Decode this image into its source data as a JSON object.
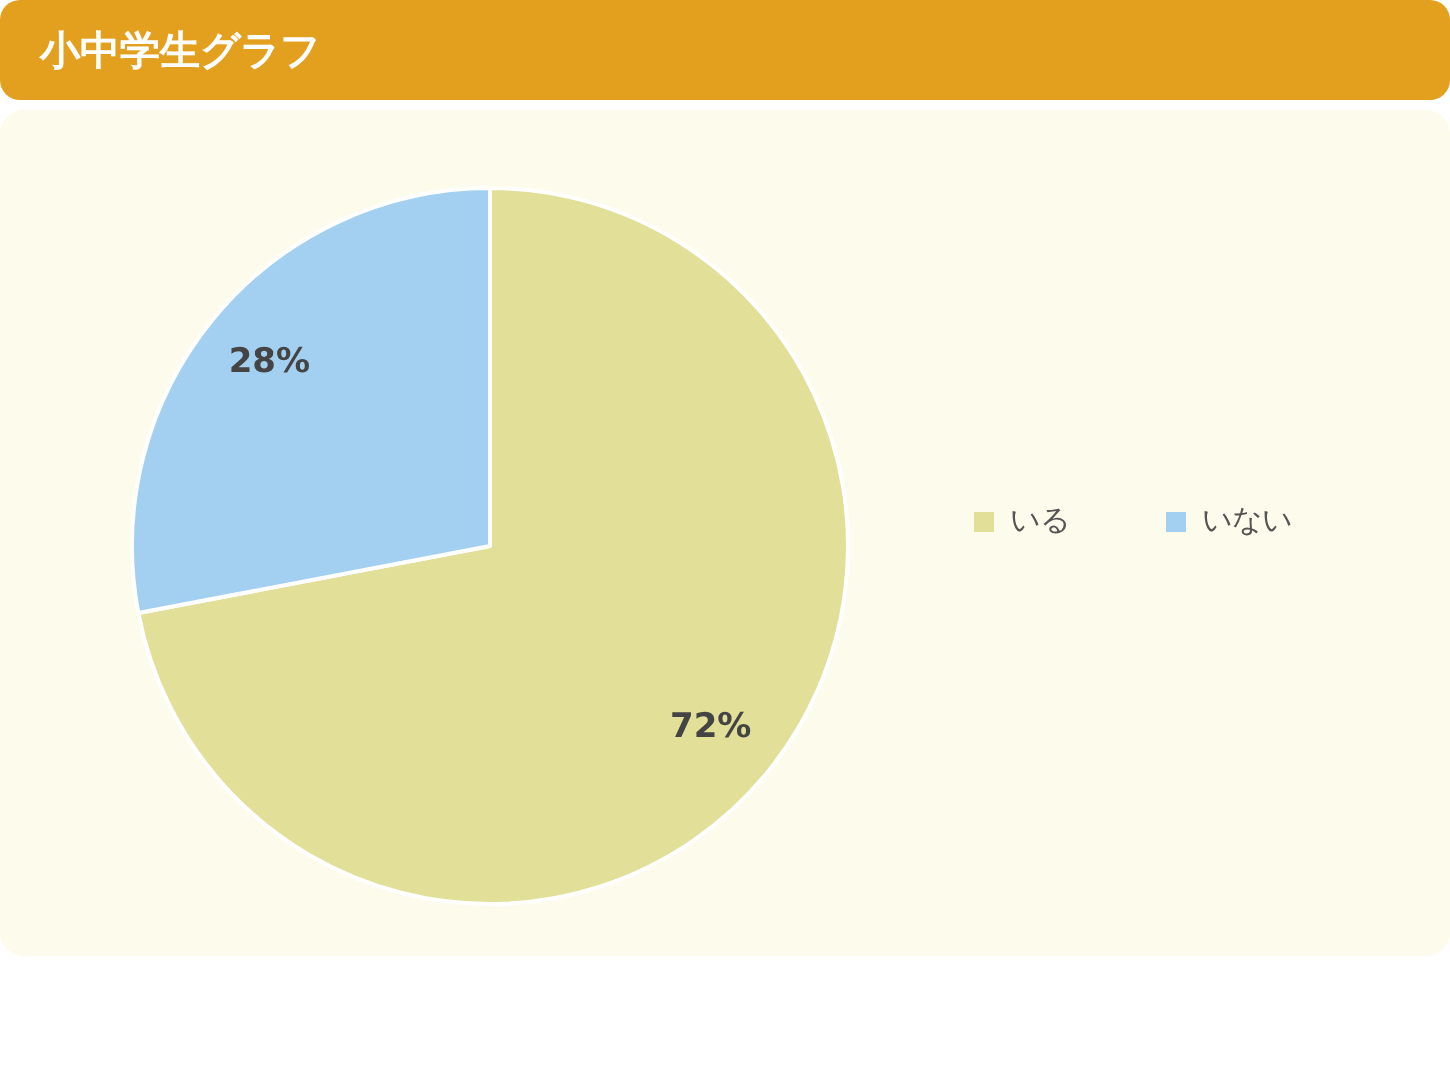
{
  "chart_data": {
    "type": "pie",
    "title": "小中学生グラフ",
    "categories": [
      "いる",
      "いない"
    ],
    "values": [
      72,
      28
    ],
    "colors": [
      "#e1df98",
      "#a3d0f0"
    ],
    "value_labels": [
      "72%",
      "28%"
    ],
    "legend": "right"
  }
}
